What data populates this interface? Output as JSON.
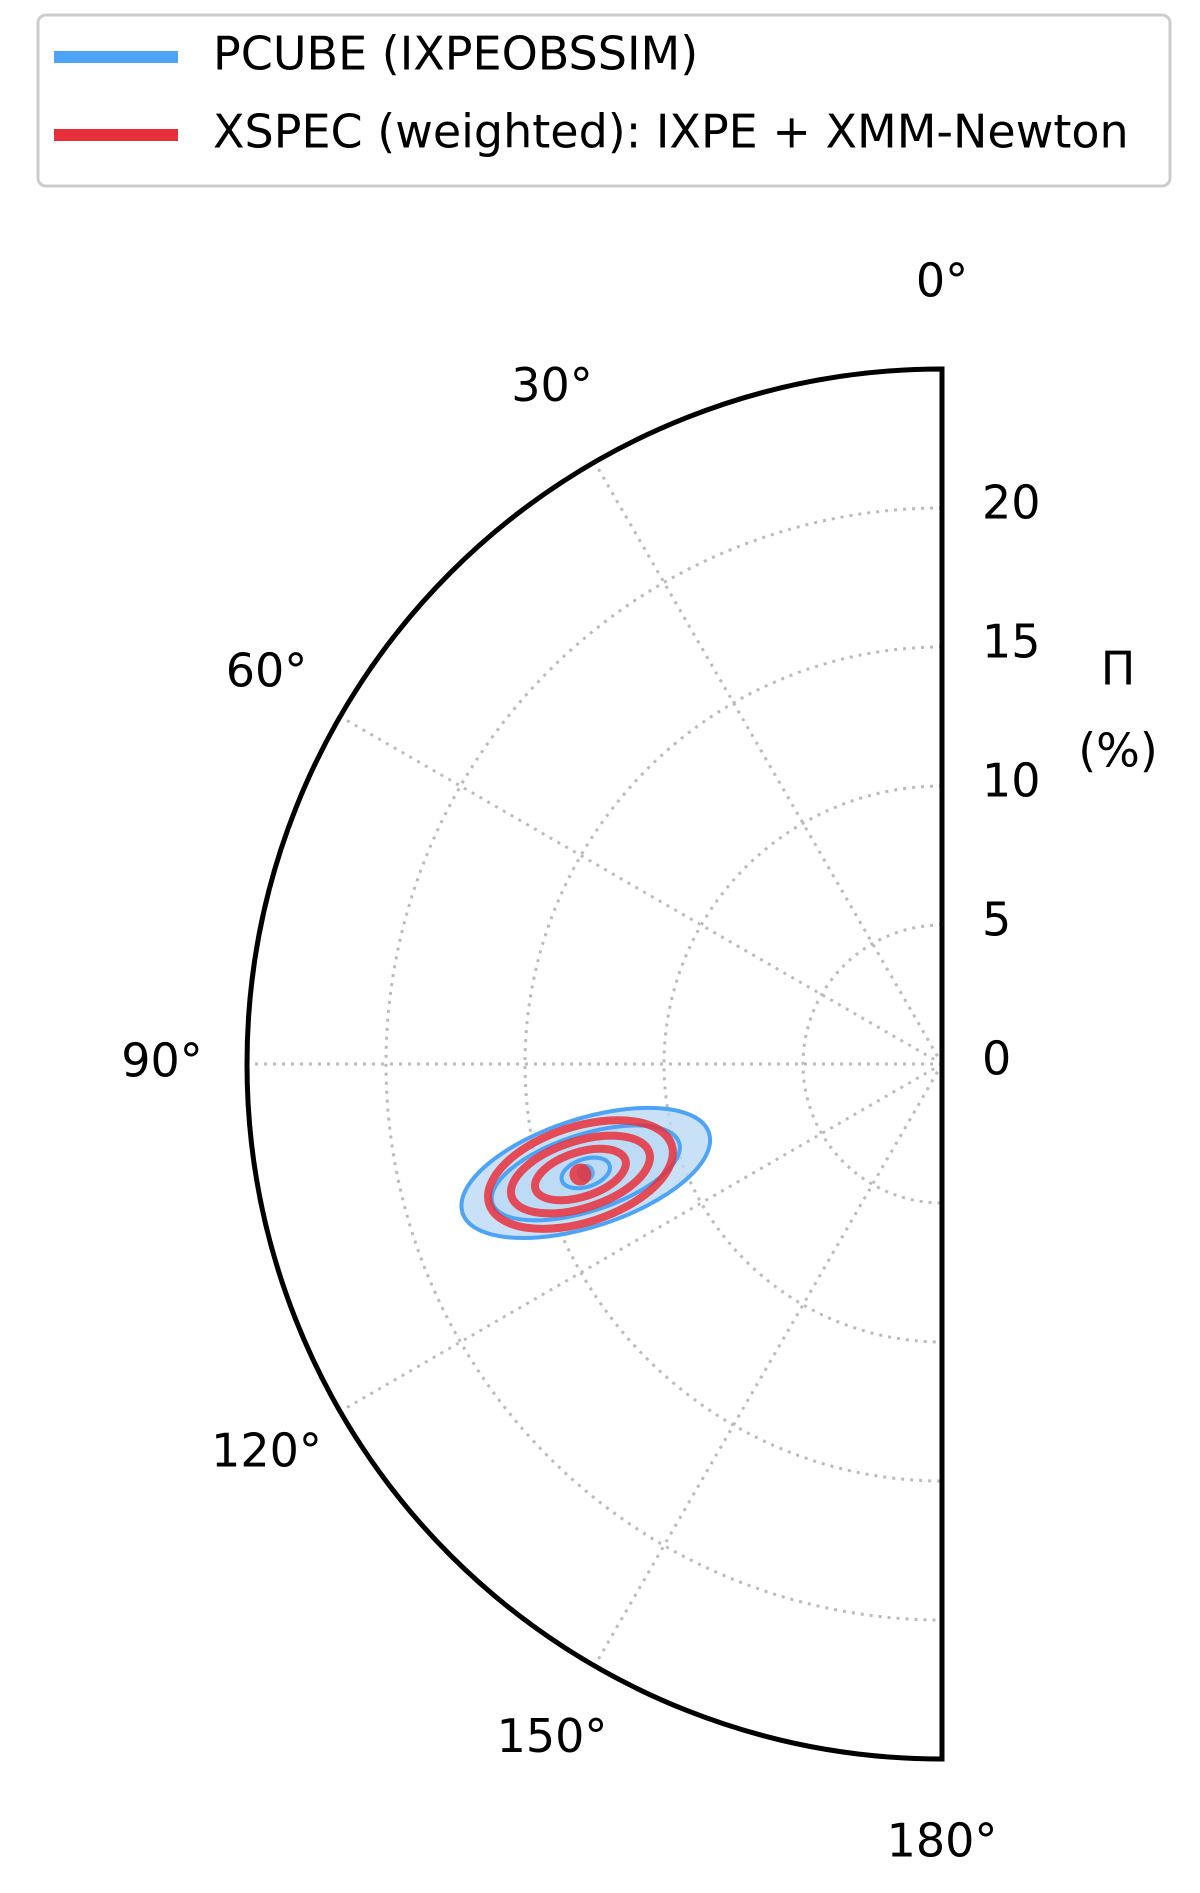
{
  "chart_data": {
    "type": "polar",
    "theta_ticks": [
      {
        "value": 0,
        "label": "0°"
      },
      {
        "value": 30,
        "label": "30°"
      },
      {
        "value": 60,
        "label": "60°"
      },
      {
        "value": 90,
        "label": "90°"
      },
      {
        "value": 120,
        "label": "120°"
      },
      {
        "value": 150,
        "label": "150°"
      },
      {
        "value": 180,
        "label": "180°"
      }
    ],
    "rlim": [
      0,
      25
    ],
    "rticks": [
      0,
      5,
      10,
      15,
      20
    ],
    "r_label": [
      "Π",
      "(%)"
    ],
    "grid": true,
    "series": [
      {
        "name": "PCUBE (IXPEOBSSIM)",
        "color": "#4da3f5",
        "fill": "#bcdaf5",
        "theta": 107,
        "r": 13.4,
        "contours": [
          {
            "a": 4.66,
            "b": 1.94,
            "rotation": -18
          },
          {
            "a": 3.53,
            "b": 1.38,
            "rotation": -18
          },
          {
            "a": 0.9,
            "b": 0.5,
            "rotation": -18
          }
        ]
      },
      {
        "name": "XSPEC (weighted): IXPE + XMM-Newton",
        "color": "#e8303a",
        "theta": 107,
        "r": 13.6,
        "contours": [
          {
            "a": 3.45,
            "b": 1.72,
            "rotation": -18
          },
          {
            "a": 2.6,
            "b": 1.2,
            "rotation": -18
          },
          {
            "a": 1.7,
            "b": 0.8,
            "rotation": -18
          }
        ]
      }
    ]
  }
}
